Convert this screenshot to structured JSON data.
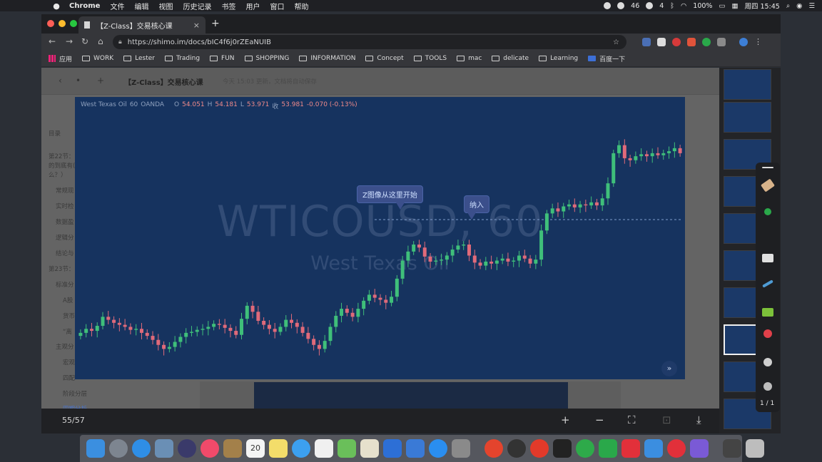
{
  "menubar": {
    "app": "Chrome",
    "items": [
      "文件",
      "编辑",
      "视图",
      "历史记录",
      "书签",
      "用户",
      "窗口",
      "帮助"
    ],
    "badge_1": "46",
    "badge_2": "4",
    "battery": "100%",
    "clock": "周四 15:45"
  },
  "browser": {
    "tab_title": "【Z-Class】交易核心课",
    "url": "https://shimo.im/docs/bIC4f6j0rZEaNUIB",
    "bookmarks": [
      "应用",
      "WORK",
      "Lester",
      "Trading",
      "FUN",
      "SHOPPING",
      "INFORMATION",
      "Concept",
      "TOOLS",
      "mac",
      "delicate",
      "Learning",
      "百度一下"
    ]
  },
  "doc": {
    "title": "【Z-Class】交易核心课",
    "saved_text": "今天 15:03 更新，文档将自动保存",
    "outline": [
      {
        "text": "目录"
      },
      {
        "text": "第22节："
      },
      {
        "text": "的到底有(."
      },
      {
        "text": "么？）"
      },
      {
        "text": "常规现"
      },
      {
        "text": "实时检"
      },
      {
        "text": "数据盈"
      },
      {
        "text": "逻辑分"
      },
      {
        "text": "结论与"
      },
      {
        "text": "第23节："
      },
      {
        "text": "标准分"
      },
      {
        "text": "A股"
      },
      {
        "text": "货币"
      },
      {
        "text": "“离"
      },
      {
        "text": "主观分"
      },
      {
        "text": "宏观"
      },
      {
        "text": "四配"
      },
      {
        "text": "阶段分层"
      },
      {
        "text": "四期分析"
      }
    ]
  },
  "chart": {
    "symbol": "West Texas Oil",
    "interval": "60",
    "source": "OANDA",
    "o_label": "O",
    "o": "54.051",
    "h_label": "H",
    "h": "54.181",
    "l_label": "L",
    "l": "53.971",
    "c_label": "收",
    "c": "53.981",
    "change": "-0.070 (-0.13%)",
    "watermark_1": "WTICOUSD, 60",
    "watermark_2": "West Texas Oil",
    "callout_1": "Z图像从这里开始",
    "callout_2": "纳入",
    "up_color": "#3fbf7a",
    "down_color": "#e06a7a"
  },
  "chart_data": {
    "type": "candlestick",
    "title": "",
    "xlabel": "",
    "ylabel": "",
    "close": [
      48.2,
      48.6,
      48.4,
      48.9,
      49.8,
      49.5,
      49.2,
      49.0,
      48.8,
      48.5,
      48.6,
      48.2,
      47.9,
      47.5,
      47.0,
      46.6,
      46.8,
      47.3,
      47.8,
      48.2,
      48.3,
      48.5,
      48.6,
      48.8,
      49.1,
      49.0,
      48.7,
      48.4,
      48.0,
      49.6,
      50.9,
      50.3,
      49.4,
      49.0,
      48.6,
      48.3,
      48.8,
      49.5,
      49.2,
      48.8,
      48.2,
      47.6,
      47.0,
      46.6,
      47.4,
      48.8,
      49.9,
      50.6,
      50.2,
      49.8,
      50.6,
      51.4,
      52.0,
      51.7,
      51.5,
      51.2,
      51.8,
      53.6,
      55.4,
      56.3,
      57.0,
      56.7,
      55.8,
      55.3,
      55.4,
      55.5,
      55.9,
      56.5,
      56.9,
      57.0,
      55.9,
      55.2,
      54.9,
      55.3,
      55.1,
      55.4,
      55.6,
      55.3,
      55.4,
      55.9,
      55.6,
      55.1,
      55.5,
      58.4,
      60.1,
      60.6,
      60.3,
      60.8,
      61.0,
      60.7,
      61.0,
      60.9,
      61.2,
      60.9,
      61.6,
      63.1,
      66.1,
      66.9,
      65.6,
      65.4,
      65.8,
      66.0,
      65.8,
      66.1,
      65.9,
      66.1,
      66.3,
      66.6,
      66.1
    ],
    "y_range": [
      44,
      70
    ]
  }
}
